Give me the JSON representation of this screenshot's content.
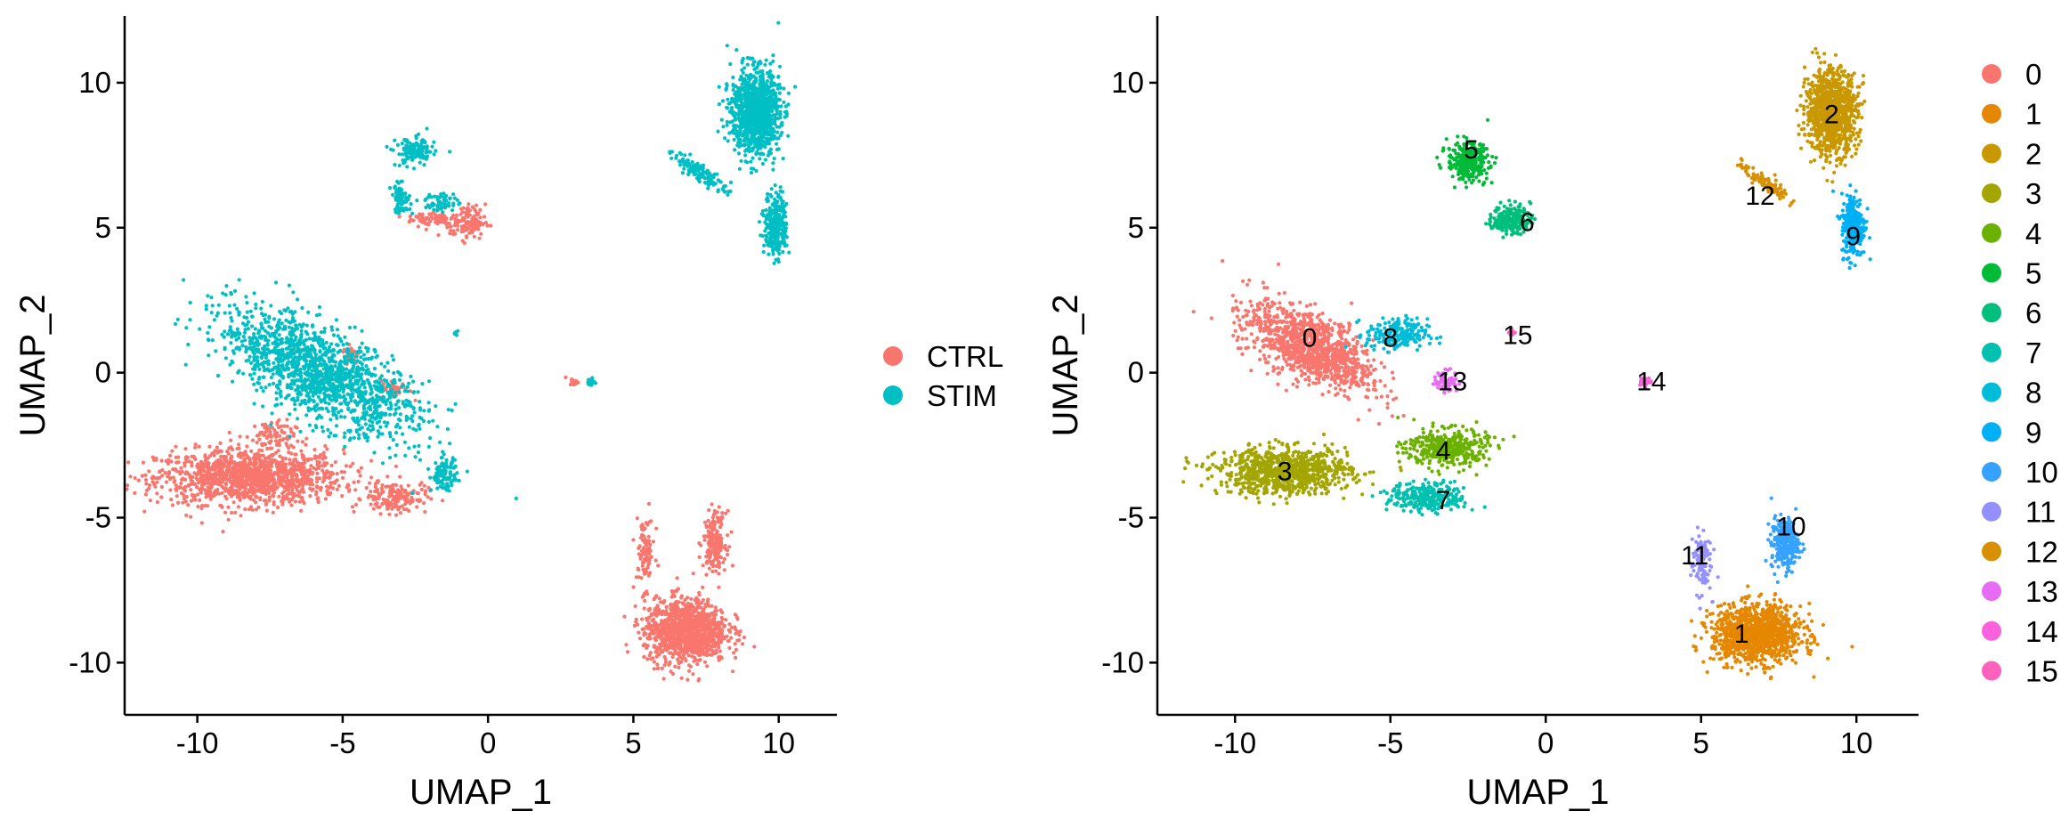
{
  "chart_data": [
    {
      "type": "scatter",
      "xlabel": "UMAP_1",
      "ylabel": "UMAP_2",
      "xlim": [
        -12.5,
        12
      ],
      "ylim": [
        -11.8,
        12.3
      ],
      "xticks": [
        "-10",
        "-5",
        "0",
        "5",
        "10"
      ],
      "yticks": [
        "-10",
        "-5",
        "0",
        "5",
        "10"
      ],
      "grid": false,
      "legend_position": "right",
      "color_by": "condition",
      "series": [
        {
          "name": "CTRL",
          "color": "#F8766D",
          "regions": [
            {
              "center": [
                -8.2,
                -3.6
              ],
              "spread": [
                2.9,
                0.85
              ],
              "n": 1300
            },
            {
              "center": [
                -3.2,
                -4.3
              ],
              "spread": [
                1.0,
                0.5
              ],
              "n": 160
            },
            {
              "center": [
                -7.5,
                -2.2
              ],
              "spread": [
                0.8,
                0.5
              ],
              "n": 80
            },
            {
              "center": [
                -0.7,
                5.2
              ],
              "spread": [
                0.55,
                0.55
              ],
              "n": 120
            },
            {
              "center": [
                -1.9,
                5.3
              ],
              "spread": [
                0.8,
                0.28
              ],
              "n": 70
            },
            {
              "center": [
                -4.7,
                0.6
              ],
              "spread": [
                0.25,
                0.4
              ],
              "n": 30
            },
            {
              "center": [
                -3.2,
                -0.6
              ],
              "spread": [
                0.45,
                0.3
              ],
              "n": 40
            },
            {
              "center": [
                2.95,
                -0.3
              ],
              "spread": [
                0.15,
                0.12
              ],
              "n": 18
            },
            {
              "center": [
                6.8,
                -8.9
              ],
              "spread": [
                1.3,
                1.0
              ],
              "n": 1100
            },
            {
              "center": [
                7.8,
                -5.8
              ],
              "spread": [
                0.35,
                0.9
              ],
              "n": 180
            },
            {
              "center": [
                5.4,
                -6.2
              ],
              "spread": [
                0.3,
                1.1
              ],
              "n": 90
            }
          ]
        },
        {
          "name": "STIM",
          "color": "#00BFC4",
          "regions": [
            {
              "center": [
                -5.8,
                0.0
              ],
              "spread": [
                3.4,
                1.3
              ],
              "angle": -28,
              "n": 1500
            },
            {
              "center": [
                -1.5,
                -3.5
              ],
              "spread": [
                0.4,
                0.5
              ],
              "n": 110
            },
            {
              "center": [
                -2.5,
                7.6
              ],
              "spread": [
                0.6,
                0.45
              ],
              "n": 130
            },
            {
              "center": [
                -3.0,
                6.0
              ],
              "spread": [
                0.3,
                0.45
              ],
              "n": 80
            },
            {
              "center": [
                -1.6,
                5.9
              ],
              "spread": [
                0.5,
                0.3
              ],
              "n": 60
            },
            {
              "center": [
                3.55,
                -0.35
              ],
              "spread": [
                0.15,
                0.12
              ],
              "n": 20
            },
            {
              "center": [
                -1.1,
                1.4
              ],
              "spread": [
                0.06,
                0.1
              ],
              "n": 6
            },
            {
              "center": [
                9.2,
                9.0
              ],
              "spread": [
                0.75,
                1.3
              ],
              "n": 1100
            },
            {
              "center": [
                7.3,
                6.9
              ],
              "spread": [
                1.0,
                0.25
              ],
              "angle": -35,
              "n": 120
            },
            {
              "center": [
                9.9,
                5.1
              ],
              "spread": [
                0.35,
                1.0
              ],
              "n": 280
            }
          ]
        }
      ]
    },
    {
      "type": "scatter",
      "xlabel": "UMAP_1",
      "ylabel": "UMAP_2",
      "xlim": [
        -12.5,
        12
      ],
      "ylim": [
        -11.8,
        12.3
      ],
      "xticks": [
        "-10",
        "-5",
        "0",
        "5",
        "10"
      ],
      "yticks": [
        "-10",
        "-5",
        "0",
        "5",
        "10"
      ],
      "grid": false,
      "legend_position": "right",
      "color_by": "cluster",
      "series": [
        {
          "name": "0",
          "color": "#F8766D",
          "label_pos": [
            -7.6,
            1.2
          ],
          "regions": [
            {
              "center": [
                -7.6,
                0.9
              ],
              "spread": [
                2.1,
                1.0
              ],
              "angle": -30,
              "n": 1100
            }
          ]
        },
        {
          "name": "1",
          "color": "#E58700",
          "label_pos": [
            6.3,
            -9.0
          ],
          "regions": [
            {
              "center": [
                6.8,
                -9.0
              ],
              "spread": [
                1.3,
                0.9
              ],
              "n": 1100
            }
          ]
        },
        {
          "name": "2",
          "color": "#C99800",
          "label_pos": [
            9.2,
            8.9
          ],
          "regions": [
            {
              "center": [
                9.2,
                9.0
              ],
              "spread": [
                0.75,
                1.3
              ],
              "n": 1000
            }
          ]
        },
        {
          "name": "3",
          "color": "#A3A500",
          "label_pos": [
            -8.4,
            -3.4
          ],
          "regions": [
            {
              "center": [
                -8.4,
                -3.4
              ],
              "spread": [
                1.9,
                0.7
              ],
              "n": 900
            }
          ]
        },
        {
          "name": "4",
          "color": "#6BB100",
          "label_pos": [
            -3.3,
            -2.7
          ],
          "regions": [
            {
              "center": [
                -3.2,
                -2.6
              ],
              "spread": [
                1.2,
                0.6
              ],
              "n": 380
            }
          ]
        },
        {
          "name": "5",
          "color": "#00BA38",
          "label_pos": [
            -2.4,
            7.7
          ],
          "regions": [
            {
              "center": [
                -2.5,
                7.3
              ],
              "spread": [
                0.6,
                0.6
              ],
              "n": 320
            }
          ]
        },
        {
          "name": "6",
          "color": "#00BF7D",
          "label_pos": [
            -0.6,
            5.2
          ],
          "regions": [
            {
              "center": [
                -1.1,
                5.3
              ],
              "spread": [
                0.55,
                0.45
              ],
              "n": 220
            }
          ]
        },
        {
          "name": "7",
          "color": "#00C0AF",
          "label_pos": [
            -3.3,
            -4.4
          ],
          "regions": [
            {
              "center": [
                -3.8,
                -4.3
              ],
              "spread": [
                1.1,
                0.45
              ],
              "n": 300
            }
          ]
        },
        {
          "name": "8",
          "color": "#00BCD8",
          "label_pos": [
            -5.0,
            1.2
          ],
          "regions": [
            {
              "center": [
                -4.8,
                1.3
              ],
              "spread": [
                0.9,
                0.5
              ],
              "n": 200
            }
          ]
        },
        {
          "name": "9",
          "color": "#00B0F6",
          "label_pos": [
            9.9,
            4.7
          ],
          "regions": [
            {
              "center": [
                9.9,
                5.1
              ],
              "spread": [
                0.35,
                1.0
              ],
              "n": 260
            }
          ]
        },
        {
          "name": "10",
          "color": "#35A2FF",
          "label_pos": [
            7.9,
            -5.3
          ],
          "regions": [
            {
              "center": [
                7.7,
                -5.9
              ],
              "spread": [
                0.4,
                0.8
              ],
              "n": 260
            }
          ]
        },
        {
          "name": "11",
          "color": "#9590FF",
          "label_pos": [
            4.8,
            -6.3
          ],
          "regions": [
            {
              "center": [
                5.0,
                -6.5
              ],
              "spread": [
                0.3,
                1.0
              ],
              "n": 110
            }
          ]
        },
        {
          "name": "12",
          "color": "#D89000",
          "label_pos": [
            6.9,
            6.1
          ],
          "regions": [
            {
              "center": [
                7.0,
                6.6
              ],
              "spread": [
                0.9,
                0.2
              ],
              "angle": -35,
              "n": 90
            }
          ]
        },
        {
          "name": "13",
          "color": "#E76BF3",
          "label_pos": [
            -3.0,
            -0.3
          ],
          "regions": [
            {
              "center": [
                -3.2,
                -0.3
              ],
              "spread": [
                0.35,
                0.35
              ],
              "n": 70
            }
          ]
        },
        {
          "name": "14",
          "color": "#FA62DB",
          "label_pos": [
            3.4,
            -0.3
          ],
          "regions": [
            {
              "center": [
                3.2,
                -0.3
              ],
              "spread": [
                0.2,
                0.12
              ],
              "n": 30
            }
          ]
        },
        {
          "name": "15",
          "color": "#FF62BC",
          "label_pos": [
            -0.9,
            1.3
          ],
          "regions": [
            {
              "center": [
                -1.1,
                1.4
              ],
              "spread": [
                0.08,
                0.12
              ],
              "n": 10
            }
          ]
        }
      ]
    }
  ]
}
